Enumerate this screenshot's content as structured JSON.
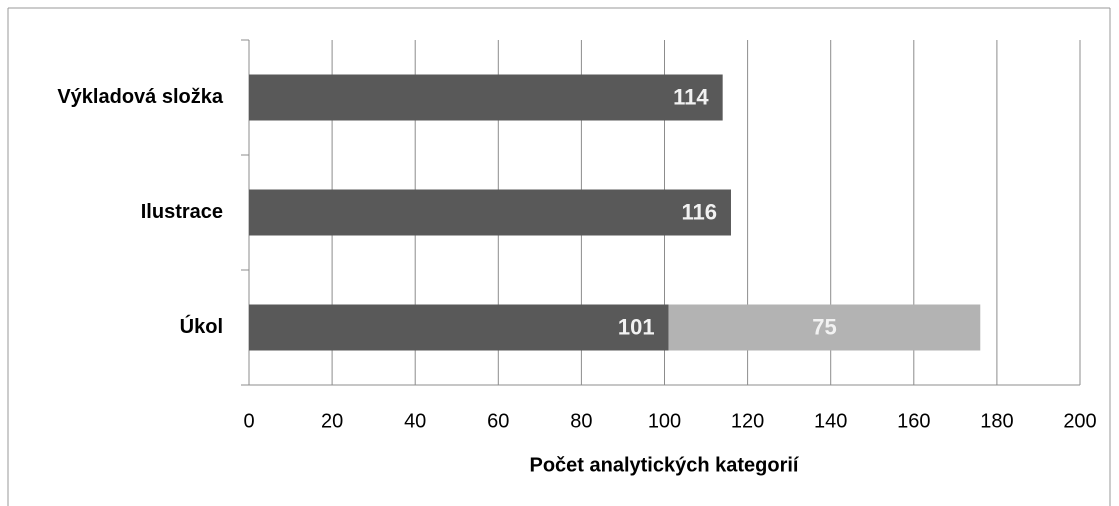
{
  "chart_data": {
    "type": "bar",
    "orientation": "horizontal",
    "stacked": true,
    "xlabel": "Počet analytických kategorií",
    "categories": [
      "Výkladová složka",
      "Ilustrace",
      "Úkol"
    ],
    "series": [
      {
        "color": "#595959",
        "values": [
          114,
          116,
          101
        ],
        "label_position": "inside_end"
      },
      {
        "color": "#b3b3b3",
        "values": [
          null,
          null,
          75
        ],
        "label_position": "center"
      }
    ],
    "xlim": [
      0,
      200
    ],
    "xticks": [
      0,
      20,
      40,
      60,
      80,
      100,
      120,
      140,
      160,
      180,
      200
    ],
    "grid": true
  }
}
